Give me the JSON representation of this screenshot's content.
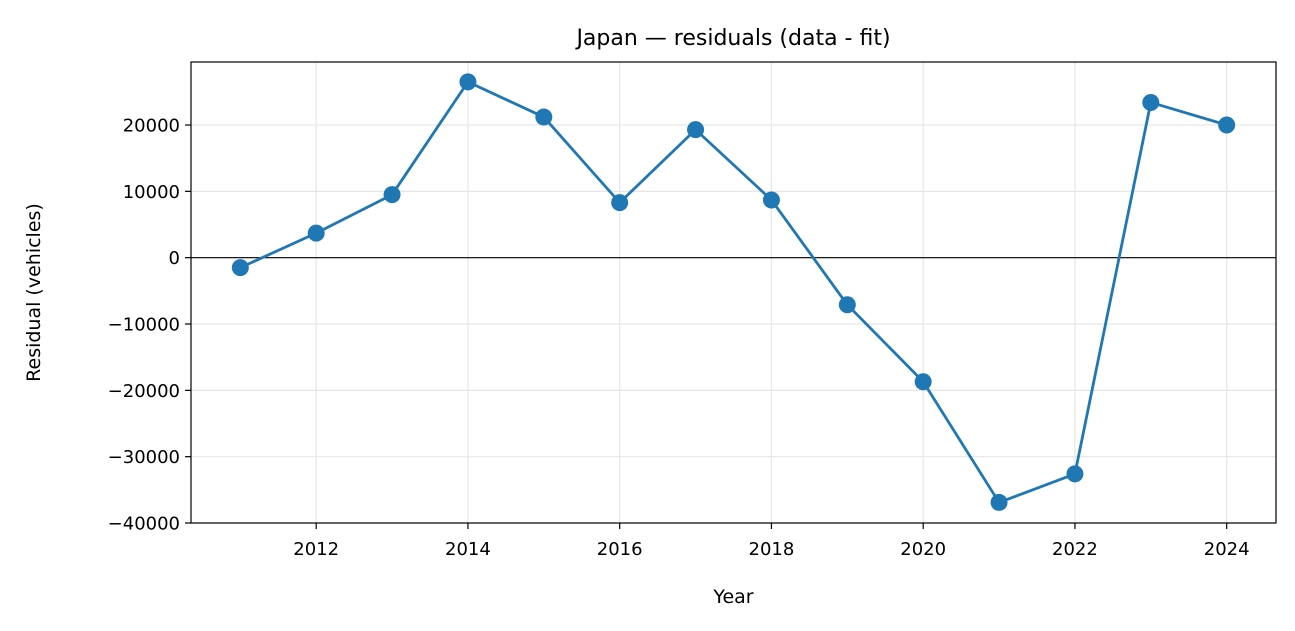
{
  "chart_data": {
    "type": "line",
    "title": "Japan — residuals (data - fit)",
    "xlabel": "Year",
    "ylabel": "Residual (vehicles)",
    "xlim": [
      2010.35,
      2024.65
    ],
    "ylim": [
      -40000,
      29500
    ],
    "xticks": [
      2012,
      2014,
      2016,
      2018,
      2020,
      2022,
      2024
    ],
    "xtick_labels": [
      "2012",
      "2014",
      "2016",
      "2018",
      "2020",
      "2022",
      "2024"
    ],
    "yticks": [
      -40000,
      -30000,
      -20000,
      -10000,
      0,
      10000,
      20000
    ],
    "ytick_labels": [
      "−40000",
      "−30000",
      "−20000",
      "−10000",
      "0",
      "10000",
      "20000"
    ],
    "grid": true,
    "zero_line": true,
    "colors": {
      "series": "#1f77b4",
      "zero_line": "#000000",
      "grid": "#e6e6e6"
    },
    "series": [
      {
        "marker": "circle",
        "x": [
          2011,
          2012,
          2013,
          2014,
          2015,
          2016,
          2017,
          2018,
          2019,
          2020,
          2021,
          2022,
          2023,
          2024
        ],
        "y": [
          -1500,
          3700,
          9500,
          26500,
          21200,
          8300,
          19300,
          8700,
          -7100,
          -18700,
          -36900,
          -32600,
          23400,
          20000
        ]
      }
    ]
  }
}
